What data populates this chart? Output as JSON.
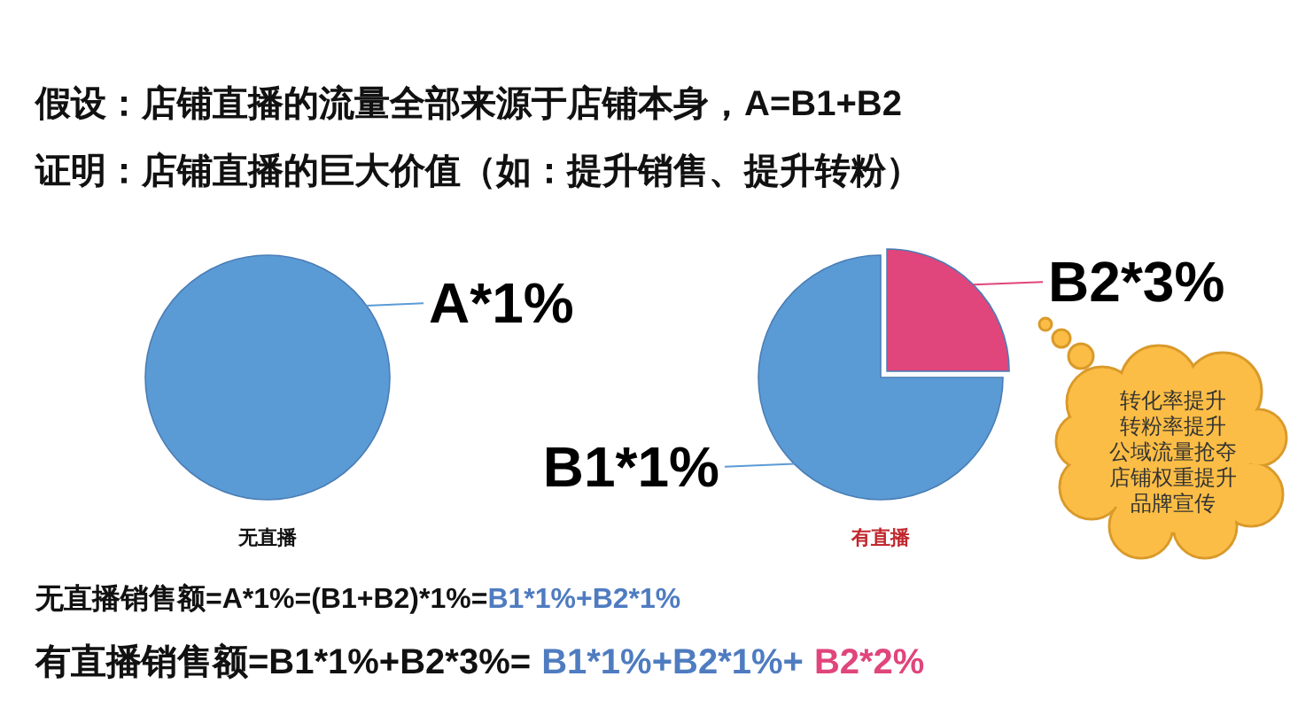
{
  "chart_data": [
    {
      "type": "other",
      "title": "假设：店铺直播的流量全部来源于店铺本身，A=B1+B2",
      "subtitle": "证明：店铺直播的巨大价值（如：提升销售、提升转粉）"
    },
    {
      "type": "pie",
      "title": "无直播",
      "categories": [
        "A*1%"
      ],
      "values": [
        100
      ],
      "colors": [
        "#5b9bd5"
      ]
    },
    {
      "type": "pie",
      "title": "有直播",
      "categories": [
        "B2*3%",
        "B1*1%"
      ],
      "values": [
        25,
        75
      ],
      "colors": [
        "#e0457b",
        "#5b9bd5"
      ],
      "annotations": [
        "转化率提升",
        "转粉率提升",
        "公域流量抢夺",
        "店铺权重提升",
        "品牌宣传"
      ]
    },
    {
      "type": "other",
      "annotations": [
        "无直播销售额=A*1%=(B1+B2)*1%=",
        "B1*1%+B2*1%"
      ]
    },
    {
      "type": "other",
      "annotations": [
        "有直播销售额=B1*1%+B2*3%=",
        "B1*1%+B2*1%+",
        "B2*2%"
      ]
    }
  ]
}
